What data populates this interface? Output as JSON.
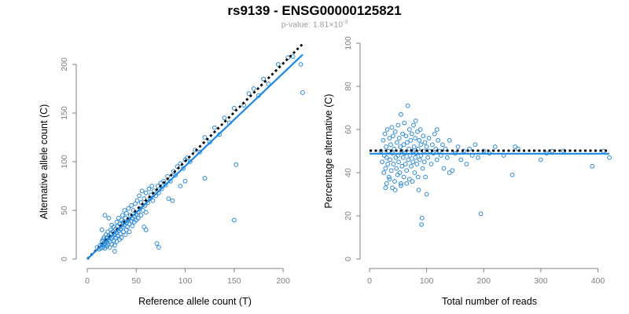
{
  "title": "rs9139 - ENSG00000125821",
  "subtitle": {
    "prefix": "p-value: 1.81×10",
    "exponent": "-3"
  },
  "colors": {
    "points": "#2a89d8",
    "fit_line": "#1e88e5",
    "ref_line": "#000000",
    "axis": "#808080"
  },
  "chart_data": [
    {
      "type": "scatter",
      "xlabel": "Reference allele count (T)",
      "ylabel": "Alternative allele count (C)",
      "xlim": [
        0,
        220
      ],
      "ylim": [
        0,
        200
      ],
      "xticks": [
        0,
        50,
        100,
        150,
        200
      ],
      "yticks": [
        0,
        50,
        100,
        150,
        200
      ],
      "grid": false,
      "fit_line": [
        [
          0,
          0
        ],
        [
          220,
          210
        ]
      ],
      "reference_line": [
        [
          0,
          0
        ],
        [
          220,
          221
        ]
      ],
      "points": [
        [
          10,
          12
        ],
        [
          12,
          10
        ],
        [
          13,
          14
        ],
        [
          14,
          11
        ],
        [
          15,
          15
        ],
        [
          15,
          18
        ],
        [
          16,
          12
        ],
        [
          16,
          20
        ],
        [
          17,
          14
        ],
        [
          17,
          22
        ],
        [
          18,
          16
        ],
        [
          18,
          11
        ],
        [
          19,
          19
        ],
        [
          19,
          25
        ],
        [
          20,
          13
        ],
        [
          20,
          17
        ],
        [
          20,
          22
        ],
        [
          21,
          28
        ],
        [
          21,
          15
        ],
        [
          22,
          20
        ],
        [
          22,
          24
        ],
        [
          23,
          12
        ],
        [
          23,
          18
        ],
        [
          24,
          26
        ],
        [
          24,
          30
        ],
        [
          25,
          21
        ],
        [
          25,
          15
        ],
        [
          25,
          35
        ],
        [
          26,
          23
        ],
        [
          26,
          28
        ],
        [
          27,
          19
        ],
        [
          27,
          33
        ],
        [
          28,
          25
        ],
        [
          28,
          14
        ],
        [
          29,
          31
        ],
        [
          29,
          22
        ],
        [
          30,
          27
        ],
        [
          30,
          38
        ],
        [
          30,
          18
        ],
        [
          31,
          34
        ],
        [
          31,
          24
        ],
        [
          32,
          29
        ],
        [
          32,
          42
        ],
        [
          33,
          20
        ],
        [
          33,
          36
        ],
        [
          34,
          31
        ],
        [
          34,
          26
        ],
        [
          35,
          40
        ],
        [
          35,
          22
        ],
        [
          36,
          45
        ],
        [
          36,
          33
        ],
        [
          37,
          28
        ],
        [
          37,
          38
        ],
        [
          38,
          35
        ],
        [
          38,
          50
        ],
        [
          39,
          25
        ],
        [
          39,
          42
        ],
        [
          40,
          37
        ],
        [
          40,
          30
        ],
        [
          40,
          47
        ],
        [
          41,
          33
        ],
        [
          42,
          40
        ],
        [
          42,
          52
        ],
        [
          43,
          36
        ],
        [
          43,
          28
        ],
        [
          44,
          45
        ],
        [
          45,
          39
        ],
        [
          45,
          55
        ],
        [
          46,
          42
        ],
        [
          46,
          34
        ],
        [
          47,
          50
        ],
        [
          48,
          44
        ],
        [
          48,
          38
        ],
        [
          49,
          57
        ],
        [
          50,
          46
        ],
        [
          50,
          40
        ],
        [
          51,
          60
        ],
        [
          52,
          48
        ],
        [
          52,
          42
        ],
        [
          53,
          65
        ],
        [
          54,
          52
        ],
        [
          55,
          45
        ],
        [
          55,
          58
        ],
        [
          56,
          70
        ],
        [
          57,
          50
        ],
        [
          58,
          62
        ],
        [
          59,
          55
        ],
        [
          60,
          68
        ],
        [
          60,
          48
        ],
        [
          62,
          58
        ],
        [
          63,
          72
        ],
        [
          64,
          62
        ],
        [
          65,
          66
        ],
        [
          66,
          75
        ],
        [
          67,
          60
        ],
        [
          68,
          70
        ],
        [
          70,
          65
        ],
        [
          72,
          75
        ],
        [
          73,
          68
        ],
        [
          75,
          78
        ],
        [
          76,
          72
        ],
        [
          78,
          80
        ],
        [
          80,
          76
        ],
        [
          82,
          85
        ],
        [
          85,
          80
        ],
        [
          88,
          90
        ],
        [
          90,
          86
        ],
        [
          92,
          95
        ],
        [
          95,
          98
        ],
        [
          98,
          93
        ],
        [
          100,
          102
        ],
        [
          102,
          104
        ],
        [
          105,
          100
        ],
        [
          110,
          112
        ],
        [
          115,
          110
        ],
        [
          120,
          125
        ],
        [
          125,
          120
        ],
        [
          130,
          135
        ],
        [
          135,
          128
        ],
        [
          140,
          145
        ],
        [
          145,
          140
        ],
        [
          150,
          155
        ],
        [
          160,
          158
        ],
        [
          165,
          170
        ],
        [
          170,
          175
        ],
        [
          175,
          168
        ],
        [
          180,
          185
        ],
        [
          185,
          180
        ],
        [
          195,
          200
        ],
        [
          205,
          207
        ],
        [
          210,
          208
        ],
        [
          218,
          200
        ],
        [
          220,
          171
        ],
        [
          152,
          97
        ],
        [
          150,
          40
        ],
        [
          73,
          12
        ],
        [
          71,
          16
        ],
        [
          87,
          60
        ],
        [
          83,
          62
        ],
        [
          120,
          83
        ],
        [
          58,
          33
        ],
        [
          60,
          30
        ],
        [
          18,
          45
        ],
        [
          22,
          42
        ],
        [
          15,
          30
        ],
        [
          28,
          8
        ],
        [
          100,
          80
        ],
        [
          95,
          75
        ]
      ]
    },
    {
      "type": "scatter",
      "xlabel": "Total number of reads",
      "ylabel": "Percentage alternative (C)",
      "xlim": [
        0,
        420
      ],
      "ylim": [
        0,
        100
      ],
      "xticks": [
        0,
        100,
        200,
        300,
        400
      ],
      "yticks": [
        0,
        20,
        40,
        60,
        80,
        100
      ],
      "grid": false,
      "fit_line": [
        [
          0,
          48.8
        ],
        [
          420,
          48.8
        ]
      ],
      "reference_line": [
        [
          0,
          50.2
        ],
        [
          420,
          50.2
        ]
      ],
      "points": [
        [
          20,
          50
        ],
        [
          22,
          45
        ],
        [
          24,
          55
        ],
        [
          25,
          40
        ],
        [
          26,
          48
        ],
        [
          27,
          58
        ],
        [
          28,
          42
        ],
        [
          29,
          52
        ],
        [
          30,
          35
        ],
        [
          30,
          47
        ],
        [
          31,
          60
        ],
        [
          32,
          44
        ],
        [
          33,
          50
        ],
        [
          34,
          38
        ],
        [
          35,
          56
        ],
        [
          36,
          46
        ],
        [
          37,
          53
        ],
        [
          38,
          41
        ],
        [
          39,
          61
        ],
        [
          40,
          49
        ],
        [
          40,
          33
        ],
        [
          41,
          57
        ],
        [
          42,
          44
        ],
        [
          43,
          51
        ],
        [
          44,
          36
        ],
        [
          45,
          59
        ],
        [
          46,
          47
        ],
        [
          47,
          42
        ],
        [
          48,
          54
        ],
        [
          49,
          39
        ],
        [
          50,
          62
        ],
        [
          50,
          48
        ],
        [
          51,
          45
        ],
        [
          52,
          56
        ],
        [
          53,
          40
        ],
        [
          54,
          52
        ],
        [
          55,
          67
        ],
        [
          55,
          35
        ],
        [
          56,
          50
        ],
        [
          57,
          43
        ],
        [
          58,
          58
        ],
        [
          59,
          47
        ],
        [
          60,
          53
        ],
        [
          60,
          38
        ],
        [
          61,
          63
        ],
        [
          62,
          49
        ],
        [
          63,
          44
        ],
        [
          64,
          57
        ],
        [
          65,
          41
        ],
        [
          66,
          54
        ],
        [
          67,
          71
        ],
        [
          68,
          46
        ],
        [
          69,
          51
        ],
        [
          70,
          60
        ],
        [
          70,
          37
        ],
        [
          71,
          48
        ],
        [
          72,
          55
        ],
        [
          73,
          43
        ],
        [
          74,
          58
        ],
        [
          75,
          50
        ],
        [
          76,
          45
        ],
        [
          77,
          62
        ],
        [
          78,
          52
        ],
        [
          79,
          40
        ],
        [
          80,
          56
        ],
        [
          80,
          47
        ],
        [
          81,
          64
        ],
        [
          82,
          49
        ],
        [
          83,
          44
        ],
        [
          84,
          59
        ],
        [
          85,
          51
        ],
        [
          86,
          32
        ],
        [
          87,
          55
        ],
        [
          88,
          46
        ],
        [
          89,
          60
        ],
        [
          90,
          53
        ],
        [
          90,
          48
        ],
        [
          91,
          16
        ],
        [
          92,
          19
        ],
        [
          93,
          42
        ],
        [
          94,
          57
        ],
        [
          95,
          50
        ],
        [
          96,
          45
        ],
        [
          97,
          54
        ],
        [
          98,
          38
        ],
        [
          100,
          52
        ],
        [
          102,
          47
        ],
        [
          104,
          56
        ],
        [
          106,
          50
        ],
        [
          108,
          44
        ],
        [
          110,
          53
        ],
        [
          112,
          49
        ],
        [
          114,
          58
        ],
        [
          116,
          51
        ],
        [
          118,
          46
        ],
        [
          120,
          55
        ],
        [
          122,
          50
        ],
        [
          125,
          48
        ],
        [
          128,
          53
        ],
        [
          130,
          42
        ],
        [
          133,
          51
        ],
        [
          136,
          47
        ],
        [
          140,
          55
        ],
        [
          145,
          41
        ],
        [
          150,
          49
        ],
        [
          155,
          52
        ],
        [
          160,
          46
        ],
        [
          165,
          50
        ],
        [
          170,
          44
        ],
        [
          175,
          51
        ],
        [
          180,
          48
        ],
        [
          185,
          53
        ],
        [
          190,
          47
        ],
        [
          195,
          21
        ],
        [
          200,
          50
        ],
        [
          210,
          49
        ],
        [
          220,
          52
        ],
        [
          235,
          48
        ],
        [
          250,
          39
        ],
        [
          255,
          52
        ],
        [
          260,
          51
        ],
        [
          300,
          46
        ],
        [
          310,
          49
        ],
        [
          320,
          50
        ],
        [
          340,
          50
        ],
        [
          390,
          43
        ],
        [
          410,
          50
        ],
        [
          420,
          47
        ],
        [
          140,
          40
        ],
        [
          118,
          60
        ],
        [
          100,
          30
        ],
        [
          85,
          38
        ],
        [
          75,
          36
        ],
        [
          65,
          35
        ],
        [
          55,
          34
        ],
        [
          45,
          32
        ],
        [
          35,
          37
        ],
        [
          28,
          33
        ]
      ]
    }
  ]
}
